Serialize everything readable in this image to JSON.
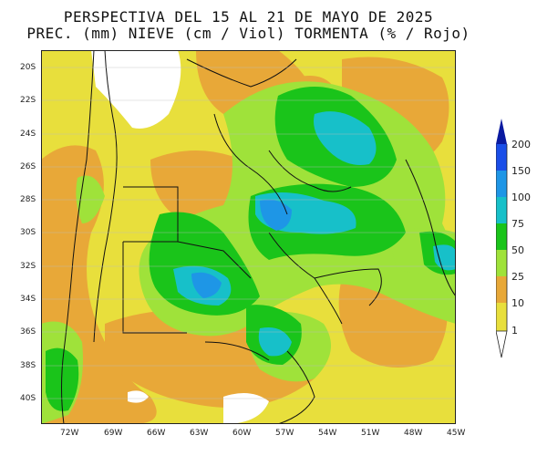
{
  "title_line1": "PERSPECTIVA DEL 15 AL 21 DE MAYO DE 2025",
  "title_line2": "PREC. (mm) NIEVE (cm / Viol) TORMENTA (% / Rojo)",
  "lat_labels": [
    "20S",
    "22S",
    "24S",
    "26S",
    "28S",
    "30S",
    "32S",
    "34S",
    "36S",
    "38S",
    "40S"
  ],
  "lon_labels": [
    "72W",
    "69W",
    "66W",
    "63W",
    "60W",
    "57W",
    "54W",
    "51W",
    "48W",
    "45W"
  ],
  "legend": {
    "labels": [
      "200",
      "150",
      "100",
      "75",
      "50",
      "25",
      "10",
      "1"
    ],
    "colors": [
      "#0a1aa0",
      "#1a4ee8",
      "#1e96e6",
      "#17c0c9",
      "#1ac41a",
      "#9fe23a",
      "#e8a838",
      "#e8df3c"
    ]
  },
  "colors": {
    "no_data": "#ffffff",
    "c1": "#e8df3c",
    "c10": "#e8a838",
    "c25": "#9fe23a",
    "c50": "#1ac41a",
    "c75": "#17c0c9",
    "c100": "#1e96e6",
    "c150": "#1a4ee8",
    "c200": "#0a1aa0"
  },
  "icons": [
    "legend-arrow-up-icon",
    "legend-arrow-down-icon"
  ]
}
